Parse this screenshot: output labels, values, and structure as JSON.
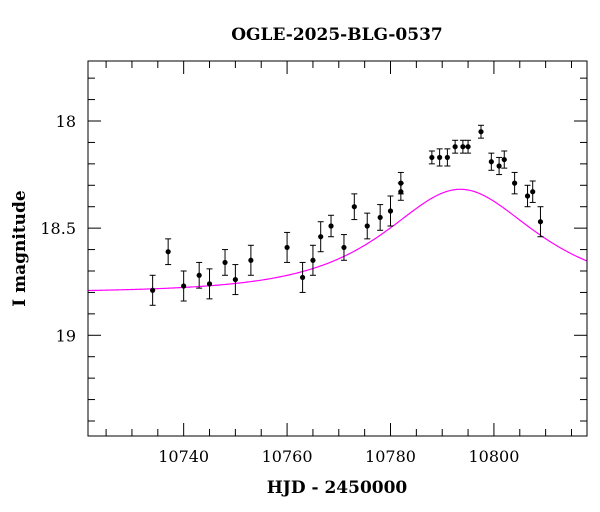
{
  "chart_data": {
    "type": "scatter",
    "title": "OGLE-2025-BLG-0537",
    "xlabel": "HJD - 2450000",
    "ylabel": "I magnitude",
    "xlim": [
      10721.5,
      10818
    ],
    "ylim": [
      19.47,
      17.72
    ],
    "y_inverted": true,
    "x_ticks": [
      10740,
      10760,
      10780,
      10800
    ],
    "x_tick_labels": [
      "10740",
      "10760",
      "10780",
      "10800"
    ],
    "y_ticks": [
      18,
      18.5,
      19
    ],
    "y_tick_labels": [
      "18",
      "18.5",
      "19"
    ],
    "grid": false,
    "colors": {
      "model": "#ff00ff",
      "points": "#000000"
    },
    "series": [
      {
        "type": "scatter_errorbar",
        "points": [
          {
            "x": 10734.0,
            "y": 18.79,
            "err": 0.07
          },
          {
            "x": 10737.0,
            "y": 18.61,
            "err": 0.06
          },
          {
            "x": 10740.0,
            "y": 18.77,
            "err": 0.07
          },
          {
            "x": 10743.0,
            "y": 18.72,
            "err": 0.06
          },
          {
            "x": 10745.0,
            "y": 18.76,
            "err": 0.07
          },
          {
            "x": 10748.0,
            "y": 18.66,
            "err": 0.06
          },
          {
            "x": 10750.0,
            "y": 18.74,
            "err": 0.07
          },
          {
            "x": 10753.0,
            "y": 18.65,
            "err": 0.07
          },
          {
            "x": 10760.0,
            "y": 18.59,
            "err": 0.07
          },
          {
            "x": 10763.0,
            "y": 18.73,
            "err": 0.07
          },
          {
            "x": 10765.0,
            "y": 18.65,
            "err": 0.07
          },
          {
            "x": 10766.5,
            "y": 18.54,
            "err": 0.07
          },
          {
            "x": 10768.5,
            "y": 18.49,
            "err": 0.05
          },
          {
            "x": 10771.0,
            "y": 18.59,
            "err": 0.06
          },
          {
            "x": 10773.0,
            "y": 18.4,
            "err": 0.06
          },
          {
            "x": 10775.5,
            "y": 18.49,
            "err": 0.06
          },
          {
            "x": 10778.0,
            "y": 18.45,
            "err": 0.06
          },
          {
            "x": 10780.0,
            "y": 18.42,
            "err": 0.07
          },
          {
            "x": 10782.0,
            "y": 18.29,
            "err": 0.05
          },
          {
            "x": 10782.0,
            "y": 18.33,
            "err": 0.04
          },
          {
            "x": 10788.0,
            "y": 18.17,
            "err": 0.03
          },
          {
            "x": 10789.5,
            "y": 18.17,
            "err": 0.04
          },
          {
            "x": 10791.0,
            "y": 18.17,
            "err": 0.04
          },
          {
            "x": 10792.5,
            "y": 18.12,
            "err": 0.03
          },
          {
            "x": 10794.0,
            "y": 18.12,
            "err": 0.03
          },
          {
            "x": 10795.0,
            "y": 18.12,
            "err": 0.03
          },
          {
            "x": 10797.5,
            "y": 18.05,
            "err": 0.03
          },
          {
            "x": 10799.5,
            "y": 18.19,
            "err": 0.04
          },
          {
            "x": 10801.0,
            "y": 18.21,
            "err": 0.04
          },
          {
            "x": 10802.0,
            "y": 18.18,
            "err": 0.04
          },
          {
            "x": 10804.0,
            "y": 18.29,
            "err": 0.05
          },
          {
            "x": 10806.5,
            "y": 18.35,
            "err": 0.05
          },
          {
            "x": 10807.5,
            "y": 18.33,
            "err": 0.05
          },
          {
            "x": 10809.0,
            "y": 18.47,
            "err": 0.07
          }
        ]
      },
      {
        "type": "line",
        "model": {
          "t0": 10793.5,
          "tE": 20,
          "u0": 0.78,
          "base": 18.8
        }
      }
    ]
  }
}
